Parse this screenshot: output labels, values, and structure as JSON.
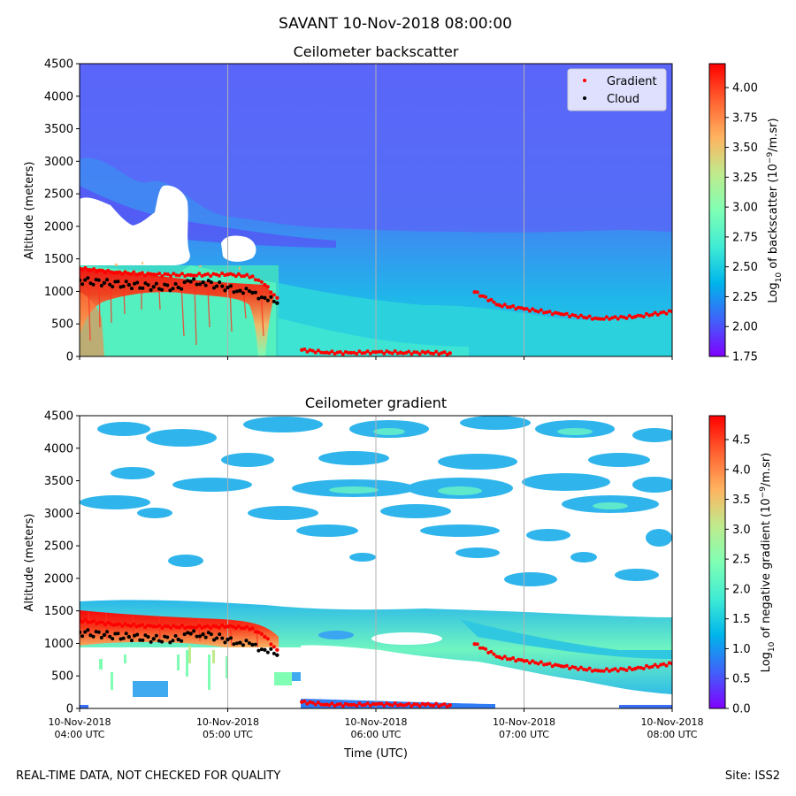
{
  "figure": {
    "suptitle": "SAVANT 10-Nov-2018 08:00:00",
    "footer_left": "REAL-TIME DATA, NOT CHECKED FOR QUALITY",
    "footer_right": "Site: ISS2",
    "xlabel": "Time (UTC)"
  },
  "colors": {
    "gradient_marker": "#ff0000",
    "cloud_marker": "#000000",
    "colormap": [
      "#8000ff",
      "#4062fa",
      "#00b5eb",
      "#40ecd4",
      "#80ffb4",
      "#c0eb8d",
      "#ffb360",
      "#ff6130",
      "#ff0000"
    ]
  },
  "chart_data": [
    {
      "type": "heatmap",
      "title": "Ceilometer backscatter",
      "ylabel": "Altitude (meters)",
      "xlim": [
        "2018-11-10 04:00",
        "2018-11-10 08:00"
      ],
      "ylim": [
        0,
        4500
      ],
      "x_ticks": [
        "10-Nov-2018\n04:00 UTC",
        "10-Nov-2018\n05:00 UTC",
        "10-Nov-2018\n06:00 UTC",
        "10-Nov-2018\n07:00 UTC",
        "10-Nov-2018\n08:00 UTC"
      ],
      "y_ticks": [
        0,
        500,
        1000,
        1500,
        2000,
        2500,
        3000,
        3500,
        4000,
        4500
      ],
      "grid": "vertical",
      "legend": {
        "placement": "top-right",
        "entries": [
          "Gradient",
          "Cloud"
        ]
      },
      "colorbar": {
        "label": "Log10 of backscatter (10^-9/m.sr)",
        "label_main": "Log",
        "label_sub": "10",
        "label_mid": " of backscatter (10",
        "label_sup": "−9",
        "label_end": "/m.sr)",
        "range": [
          1.75,
          4.2
        ],
        "ticks": [
          "1.75",
          "2.00",
          "2.25",
          "2.50",
          "2.75",
          "3.00",
          "3.25",
          "3.50",
          "3.75",
          "4.00"
        ]
      },
      "series": [
        {
          "name": "Gradient",
          "x": [
            "04:00",
            "04:15",
            "04:30",
            "04:45",
            "05:00",
            "05:10",
            "05:15",
            "05:20",
            "05:30",
            "05:40",
            "05:50",
            "06:00",
            "06:10",
            "06:20",
            "06:30",
            "06:40",
            "06:50",
            "07:00",
            "07:15",
            "07:30",
            "07:45",
            "08:00"
          ],
          "y": [
            1350,
            1290,
            1260,
            1250,
            1260,
            1230,
            1100,
            900,
            100,
            60,
            55,
            65,
            60,
            55,
            50,
            990,
            790,
            730,
            650,
            580,
            610,
            690
          ]
        },
        {
          "name": "Cloud",
          "x": [
            "04:00",
            "04:10",
            "04:20",
            "04:30",
            "04:40",
            "04:45",
            "04:50",
            "05:00",
            "05:05",
            "05:10",
            "05:15",
            "05:20"
          ],
          "y": [
            1170,
            1130,
            1100,
            1070,
            1060,
            1150,
            1140,
            1060,
            1010,
            980,
            900,
            820
          ]
        }
      ]
    },
    {
      "type": "heatmap",
      "title": "Ceilometer gradient",
      "ylabel": "Altitude (meters)",
      "xlim": [
        "2018-11-10 04:00",
        "2018-11-10 08:00"
      ],
      "ylim": [
        0,
        4500
      ],
      "x_ticks": [
        "10-Nov-2018\n04:00 UTC",
        "10-Nov-2018\n05:00 UTC",
        "10-Nov-2018\n06:00 UTC",
        "10-Nov-2018\n07:00 UTC",
        "10-Nov-2018\n08:00 UTC"
      ],
      "y_ticks": [
        0,
        500,
        1000,
        1500,
        2000,
        2500,
        3000,
        3500,
        4000,
        4500
      ],
      "grid": "vertical",
      "colorbar": {
        "label": "Log10 of negative gradient (10^-9/m.sr)",
        "label_main": "Log",
        "label_sub": "10",
        "label_mid": " of negative gradient (10",
        "label_sup": "−9",
        "label_end": "/m.sr)",
        "range": [
          0,
          4.9
        ],
        "ticks": [
          "0.0",
          "0.5",
          "1.0",
          "1.5",
          "2.0",
          "2.5",
          "3.0",
          "3.5",
          "4.0",
          "4.5"
        ]
      },
      "series": [
        {
          "name": "Gradient",
          "x": [
            "04:00",
            "04:15",
            "04:30",
            "04:45",
            "05:00",
            "05:10",
            "05:15",
            "05:20",
            "05:30",
            "05:40",
            "05:50",
            "06:00",
            "06:10",
            "06:20",
            "06:30",
            "06:40",
            "06:50",
            "07:00",
            "07:15",
            "07:30",
            "07:45",
            "08:00"
          ],
          "y": [
            1350,
            1290,
            1260,
            1250,
            1260,
            1230,
            1100,
            900,
            100,
            60,
            55,
            65,
            60,
            55,
            50,
            990,
            790,
            730,
            650,
            580,
            610,
            690
          ]
        },
        {
          "name": "Cloud",
          "x": [
            "04:00",
            "04:10",
            "04:20",
            "04:30",
            "04:40",
            "04:45",
            "04:50",
            "05:00",
            "05:05",
            "05:10",
            "05:15",
            "05:20"
          ],
          "y": [
            1170,
            1130,
            1100,
            1070,
            1060,
            1150,
            1140,
            1060,
            1010,
            980,
            900,
            820
          ]
        }
      ]
    }
  ]
}
